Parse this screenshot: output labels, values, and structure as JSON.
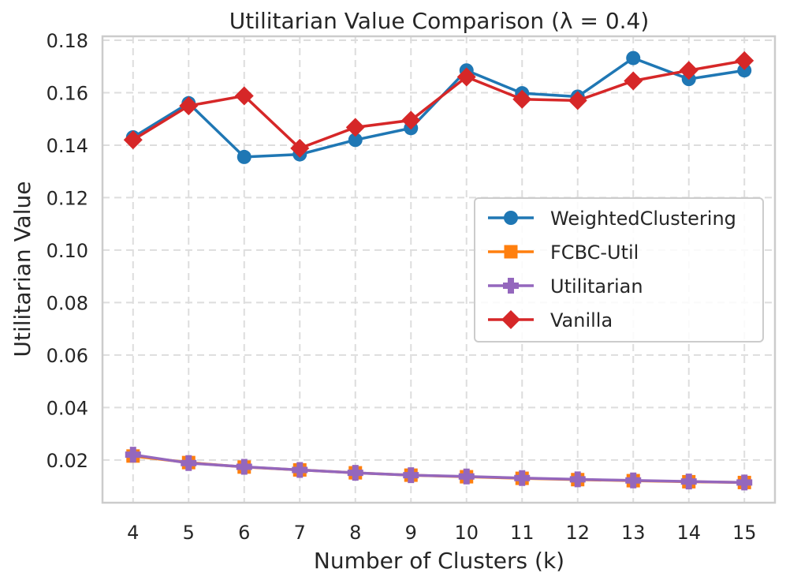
{
  "chart_data": {
    "type": "line",
    "title": "Utilitarian Value Comparison (λ = 0.4)",
    "xlabel": "Number of Clusters (k)",
    "ylabel": "Utilitarian Value",
    "x": [
      4,
      5,
      6,
      7,
      8,
      9,
      10,
      11,
      12,
      13,
      14,
      15
    ],
    "xticks": [
      "4",
      "5",
      "6",
      "7",
      "8",
      "9",
      "10",
      "11",
      "12",
      "13",
      "14",
      "15"
    ],
    "ylim": [
      0.0037,
      0.1815
    ],
    "yticks": [
      "0.02",
      "0.04",
      "0.06",
      "0.08",
      "0.10",
      "0.12",
      "0.14",
      "0.16",
      "0.18"
    ],
    "grid": true,
    "legend_position": "center-right",
    "series": [
      {
        "name": "WeightedClustering",
        "color": "#1f77b4",
        "marker": "circle",
        "values": [
          0.143,
          0.156,
          0.1355,
          0.1365,
          0.142,
          0.1465,
          0.1685,
          0.1598,
          0.1585,
          0.1732,
          0.1652,
          0.1685
        ]
      },
      {
        "name": "FCBC-Util",
        "color": "#ff7f0e",
        "marker": "square",
        "values": [
          0.0215,
          0.019,
          0.0173,
          0.0162,
          0.0151,
          0.0142,
          0.0136,
          0.013,
          0.0125,
          0.0121,
          0.0117,
          0.0114
        ]
      },
      {
        "name": "Utilitarian",
        "color": "#9467bd",
        "marker": "plus",
        "values": [
          0.022,
          0.0188,
          0.0174,
          0.0162,
          0.0151,
          0.0142,
          0.0137,
          0.0131,
          0.0126,
          0.0122,
          0.0118,
          0.0114
        ]
      },
      {
        "name": "Vanilla",
        "color": "#d62728",
        "marker": "diamond",
        "values": [
          0.142,
          0.155,
          0.1588,
          0.1388,
          0.1468,
          0.1495,
          0.166,
          0.1575,
          0.157,
          0.1645,
          0.1685,
          0.1722
        ]
      }
    ]
  }
}
